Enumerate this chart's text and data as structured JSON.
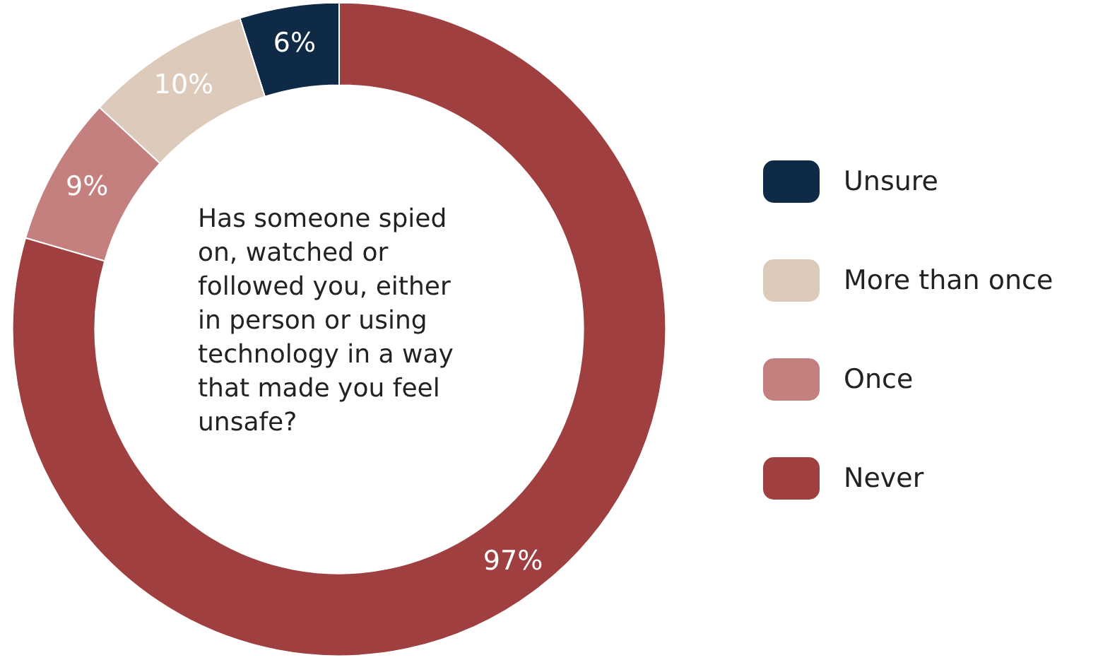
{
  "chart_data": {
    "type": "donut",
    "title": "Has someone spied on, watched or followed you, either in person or using technology in a way that made you feel unsafe?",
    "categories": [
      "Unsure",
      "More than once",
      "Once",
      "Never"
    ],
    "values": [
      6,
      10,
      9,
      97
    ],
    "colors": [
      "#0e2a47",
      "#dccbbb",
      "#c47f7f",
      "#a03f3f"
    ],
    "value_labels": [
      "6%",
      "10%",
      "9%",
      "97%"
    ],
    "legend": "right"
  }
}
